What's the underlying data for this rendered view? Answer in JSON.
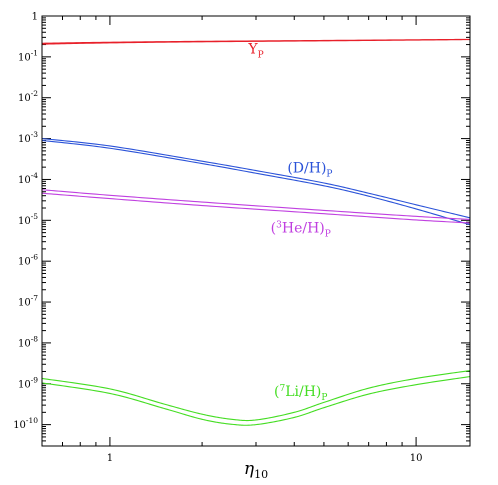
{
  "chart_data": {
    "type": "line",
    "xscale": "log",
    "yscale": "log",
    "xlim": [
      0.6,
      15
    ],
    "ylim": [
      3e-11,
      1
    ],
    "xlabel": "η₁₀",
    "ylabel": "",
    "x_ticks": [
      {
        "value": 1,
        "label": "1"
      },
      {
        "value": 10,
        "label": "10"
      }
    ],
    "y_ticks": [
      {
        "value": 1,
        "base": "1",
        "exp": ""
      },
      {
        "value": 0.1,
        "base": "10",
        "exp": "-1"
      },
      {
        "value": 0.01,
        "base": "10",
        "exp": "-2"
      },
      {
        "value": 0.001,
        "base": "10",
        "exp": "-3"
      },
      {
        "value": 0.0001,
        "base": "10",
        "exp": "-4"
      },
      {
        "value": 1e-05,
        "base": "10",
        "exp": "-5"
      },
      {
        "value": 1e-06,
        "base": "10",
        "exp": "-6"
      },
      {
        "value": 1e-07,
        "base": "10",
        "exp": "-7"
      },
      {
        "value": 1e-08,
        "base": "10",
        "exp": "-8"
      },
      {
        "value": 1e-09,
        "base": "10",
        "exp": "-9"
      },
      {
        "value": 1e-10,
        "base": "10",
        "exp": "-10"
      }
    ],
    "series": [
      {
        "name": "Y_P",
        "color": "#e8202a",
        "label": {
          "main": "Y",
          "sub": "P",
          "at": [
            3.0,
            0.12
          ]
        },
        "upper": {
          "x": [
            0.6,
            1,
            2,
            5,
            10,
            15
          ],
          "y": [
            0.215,
            0.228,
            0.24,
            0.252,
            0.262,
            0.268
          ]
        },
        "lower": {
          "x": [
            0.6,
            1,
            2,
            5,
            10,
            15
          ],
          "y": [
            0.205,
            0.22,
            0.234,
            0.247,
            0.258,
            0.265
          ]
        }
      },
      {
        "name": "(D/H)_P",
        "color": "#2a52d8",
        "label": {
          "main": "(D/H)",
          "sub": "P",
          "at": [
            4.5,
            0.00015
          ]
        },
        "upper": {
          "x": [
            0.6,
            1,
            2,
            3,
            5,
            7,
            10,
            15
          ],
          "y": [
            0.001,
            0.00066,
            0.00028,
            0.000165,
            8.2e-05,
            4.6e-05,
            2.4e-05,
            1.15e-05
          ]
        },
        "lower": {
          "x": [
            0.6,
            1,
            2,
            3,
            5,
            7,
            10,
            15
          ],
          "y": [
            0.0009,
            0.00058,
            0.000245,
            0.000142,
            7e-05,
            3.9e-05,
            1.9e-05,
            7.8e-06
          ]
        }
      },
      {
        "name": "(3He/H)_P",
        "color": "#c040e0",
        "label": {
          "main": "(",
          "sup": "3",
          "rest": "He/H)",
          "sub": "P",
          "at": [
            4.2,
            5e-06
          ]
        },
        "upper": {
          "x": [
            0.6,
            1,
            2,
            5,
            10,
            15
          ],
          "y": [
            5.6e-05,
            4.1e-05,
            2.8e-05,
            1.75e-05,
            1.25e-05,
            1.05e-05
          ]
        },
        "lower": {
          "x": [
            0.6,
            1,
            2,
            5,
            10,
            15
          ],
          "y": [
            4.6e-05,
            3.4e-05,
            2.3e-05,
            1.45e-05,
            1.02e-05,
            8.6e-06
          ]
        }
      },
      {
        "name": "(7Li/H)_P",
        "color": "#44dd22",
        "label": {
          "main": "(",
          "sup": "7",
          "rest": "Li/H)",
          "sub": "P",
          "at": [
            4.2,
            5e-10
          ]
        },
        "upper": {
          "x": [
            0.6,
            1,
            1.5,
            2,
            2.5,
            3,
            4,
            5,
            7,
            10,
            15
          ],
          "y": [
            1.35e-09,
            7.5e-10,
            3.2e-10,
            1.8e-10,
            1.35e-10,
            1.3e-10,
            2e-10,
            3.5e-10,
            7.8e-10,
            1.35e-09,
            2.1e-09
          ]
        },
        "lower": {
          "x": [
            0.6,
            1,
            1.5,
            2,
            2.5,
            3,
            4,
            5,
            7,
            10,
            15
          ],
          "y": [
            1.05e-09,
            5.8e-10,
            2.5e-10,
            1.35e-10,
            1.02e-10,
            1e-10,
            1.5e-10,
            2.6e-10,
            5.6e-10,
            9.5e-10,
            1.5e-09
          ]
        }
      }
    ]
  }
}
